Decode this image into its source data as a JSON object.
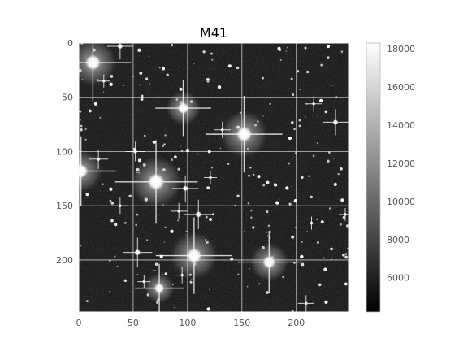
{
  "chart_data": {
    "type": "heatmap",
    "title": "M41",
    "subject": "star field (grayscale astronomical image)",
    "colormap": "gray",
    "image_size": [
      248,
      248
    ],
    "xlim": [
      0,
      248
    ],
    "ylim": [
      248,
      0
    ],
    "xticks": [
      0,
      50,
      100,
      150,
      200
    ],
    "yticks": [
      0,
      50,
      100,
      150,
      200
    ],
    "xtick_labels": [
      "0",
      "50",
      "100",
      "150",
      "200"
    ],
    "ytick_labels": [
      "0",
      "50",
      "100",
      "150",
      "200"
    ],
    "grid": true,
    "background_level": 5600,
    "colorbar": {
      "range": [
        4200,
        18300
      ],
      "ticks": [
        6000,
        8000,
        10000,
        12000,
        14000,
        16000,
        18000
      ],
      "tick_labels": [
        "6000",
        "8000",
        "10000",
        "12000",
        "14000",
        "16000",
        "18000"
      ]
    },
    "bright_stars": [
      {
        "x": 13,
        "y": 18,
        "peak": 18000,
        "halo": 22
      },
      {
        "x": 96,
        "y": 60,
        "peak": 18000,
        "halo": 16
      },
      {
        "x": 152,
        "y": 84,
        "peak": 18000,
        "halo": 22
      },
      {
        "x": 71,
        "y": 128,
        "peak": 18000,
        "halo": 24
      },
      {
        "x": 2,
        "y": 118,
        "peak": 17000,
        "halo": 20
      },
      {
        "x": 106,
        "y": 196,
        "peak": 18000,
        "halo": 22
      },
      {
        "x": 175,
        "y": 202,
        "peak": 17500,
        "halo": 18
      },
      {
        "x": 74,
        "y": 226,
        "peak": 17000,
        "halo": 14
      },
      {
        "x": 236,
        "y": 73,
        "peak": 16000,
        "halo": 8
      },
      {
        "x": 54,
        "y": 193,
        "peak": 16000,
        "halo": 9
      },
      {
        "x": 110,
        "y": 158,
        "peak": 16000,
        "halo": 9
      },
      {
        "x": 98,
        "y": 134,
        "peak": 15000,
        "halo": 8
      },
      {
        "x": 38,
        "y": 3,
        "peak": 16000,
        "halo": 8
      },
      {
        "x": 52,
        "y": 100,
        "peak": 15000,
        "halo": 6
      },
      {
        "x": 18,
        "y": 107,
        "peak": 15000,
        "halo": 6
      },
      {
        "x": 38,
        "y": 150,
        "peak": 14000,
        "halo": 5
      },
      {
        "x": 92,
        "y": 155,
        "peak": 14000,
        "halo": 5
      },
      {
        "x": 132,
        "y": 80,
        "peak": 13000,
        "halo": 5
      },
      {
        "x": 216,
        "y": 56,
        "peak": 13000,
        "halo": 5
      },
      {
        "x": 209,
        "y": 240,
        "peak": 13000,
        "halo": 5
      },
      {
        "x": 245,
        "y": 158,
        "peak": 12000,
        "halo": 4
      },
      {
        "x": 95,
        "y": 214,
        "peak": 13000,
        "halo": 5
      },
      {
        "x": 23,
        "y": 35,
        "peak": 12000,
        "halo": 4
      },
      {
        "x": 60,
        "y": 220,
        "peak": 12000,
        "halo": 4
      },
      {
        "x": 121,
        "y": 124,
        "peak": 12000,
        "halo": 4
      },
      {
        "x": 214,
        "y": 166,
        "peak": 12000,
        "halo": 4
      }
    ],
    "faint_star_count": 240
  }
}
